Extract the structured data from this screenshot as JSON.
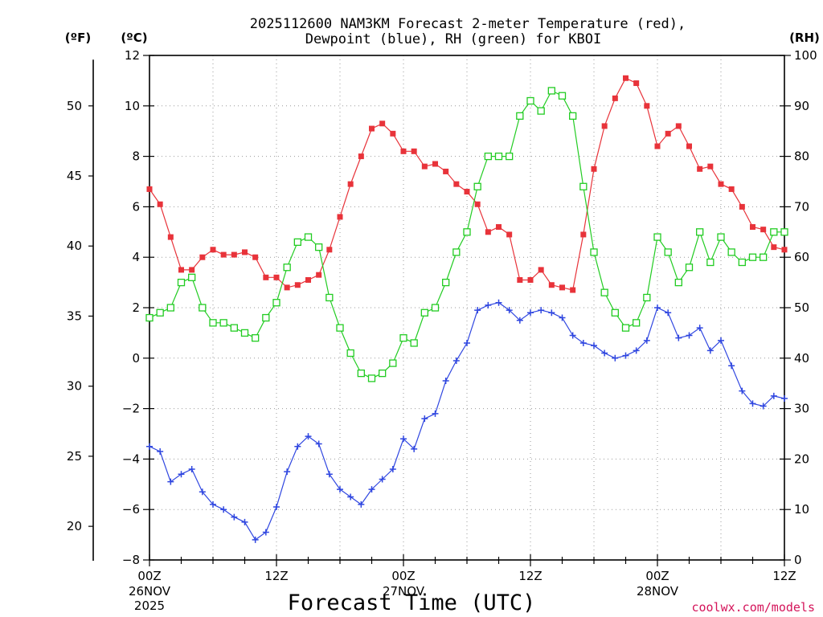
{
  "chart_data": {
    "type": "line",
    "title_line1": "2025112600 NAM3KM Forecast 2-meter Temperature (red),",
    "title_line2": "Dewpoint (blue), RH (green) for KBOI",
    "left_unit_f": "(ºF)",
    "left_unit_c": "(ºC)",
    "right_unit": "(RH)",
    "xlabel": "Forecast Time (UTC)",
    "credit": "coolwx.com/models",
    "x_hours": [
      0,
      1,
      2,
      3,
      4,
      5,
      6,
      7,
      8,
      9,
      10,
      11,
      12,
      13,
      14,
      15,
      16,
      17,
      18,
      19,
      20,
      21,
      22,
      23,
      24,
      25,
      26,
      27,
      28,
      29,
      30,
      31,
      32,
      33,
      34,
      35,
      36,
      37,
      38,
      39,
      40,
      41,
      42,
      43,
      44,
      45,
      46,
      47,
      48,
      49,
      50,
      51,
      52,
      53,
      54,
      55,
      56,
      57,
      58,
      59,
      60
    ],
    "x_range": [
      0,
      60
    ],
    "y_celsius_range": [
      -8,
      12
    ],
    "y_celsius_ticks": [
      "12",
      "10",
      "8",
      "6",
      "4",
      "2",
      "0",
      "−2",
      "−4",
      "−6",
      "−8"
    ],
    "y_fahrenheit_ticks": [
      "50",
      "45",
      "40",
      "35",
      "30",
      "25",
      "20"
    ],
    "y_rh_range": [
      0,
      100
    ],
    "y_rh_ticks": [
      "100",
      "90",
      "80",
      "70",
      "60",
      "50",
      "40",
      "30",
      "20",
      "10",
      "0"
    ],
    "x_tick_labels": [
      {
        "hour": 0,
        "line1": "00Z",
        "line2": "26NOV",
        "line3": "2025"
      },
      {
        "hour": 12,
        "line1": "12Z",
        "line2": "",
        "line3": ""
      },
      {
        "hour": 24,
        "line1": "00Z",
        "line2": "27NOV",
        "line3": ""
      },
      {
        "hour": 36,
        "line1": "12Z",
        "line2": "",
        "line3": ""
      },
      {
        "hour": 48,
        "line1": "00Z",
        "line2": "28NOV",
        "line3": ""
      },
      {
        "hour": 60,
        "line1": "12Z",
        "line2": "",
        "line3": ""
      }
    ],
    "grid": true,
    "series": [
      {
        "name": "2-meter Temperature",
        "unit": "C",
        "color": "#e8333a",
        "marker": "filled-square",
        "values": [
          6.7,
          6.1,
          4.8,
          3.5,
          3.5,
          4.0,
          4.3,
          4.1,
          4.1,
          4.2,
          4.0,
          3.2,
          3.2,
          2.8,
          2.9,
          3.1,
          3.3,
          4.3,
          5.6,
          6.9,
          8.0,
          9.1,
          9.3,
          8.9,
          8.2,
          8.2,
          7.6,
          7.7,
          7.4,
          6.9,
          6.6,
          6.1,
          5.0,
          5.2,
          4.9,
          3.1,
          3.1,
          3.5,
          2.9,
          2.8,
          2.7,
          4.9,
          7.5,
          9.2,
          10.3,
          11.1,
          10.9,
          10.0,
          8.4,
          8.9,
          9.2,
          8.4,
          7.5,
          7.6,
          6.9,
          6.7,
          6.0,
          5.2,
          5.1,
          4.4,
          4.3
        ]
      },
      {
        "name": "Dewpoint",
        "unit": "C",
        "color": "#2f46e0",
        "marker": "plus",
        "values": [
          -3.5,
          -3.7,
          -4.9,
          -4.6,
          -4.4,
          -5.3,
          -5.8,
          -6.0,
          -6.3,
          -6.5,
          -7.2,
          -6.9,
          -5.9,
          -4.5,
          -3.5,
          -3.1,
          -3.4,
          -4.6,
          -5.2,
          -5.5,
          -5.8,
          -5.2,
          -4.8,
          -4.4,
          -3.2,
          -3.6,
          -2.4,
          -2.2,
          -0.9,
          -0.1,
          0.6,
          1.9,
          2.1,
          2.2,
          1.9,
          1.5,
          1.8,
          1.9,
          1.8,
          1.6,
          0.9,
          0.6,
          0.5,
          0.2,
          0.0,
          0.1,
          0.3,
          0.7,
          2.0,
          1.8,
          0.8,
          0.9,
          1.2,
          0.3,
          0.7,
          -0.3,
          -1.3,
          -1.8,
          -1.9,
          -1.5,
          -1.6
        ]
      },
      {
        "name": "RH",
        "unit": "%",
        "color": "#22cc22",
        "marker": "open-square",
        "values": [
          48,
          49,
          50,
          55,
          56,
          50,
          47,
          47,
          46,
          45,
          44,
          48,
          51,
          58,
          63,
          64,
          62,
          52,
          46,
          41,
          37,
          36,
          37,
          39,
          44,
          43,
          49,
          50,
          55,
          61,
          65,
          74,
          80,
          80,
          80,
          88,
          91,
          89,
          93,
          92,
          88,
          74,
          61,
          53,
          49,
          46,
          47,
          52,
          64,
          61,
          55,
          58,
          65,
          59,
          64,
          61,
          59,
          60,
          60,
          65,
          65
        ]
      }
    ]
  }
}
